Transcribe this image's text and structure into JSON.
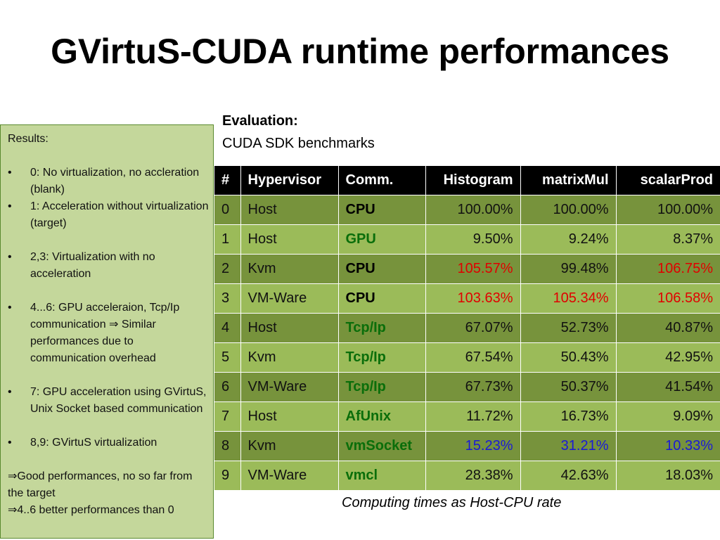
{
  "title": "GVirtuS-CUDA runtime performances",
  "results": {
    "heading": "Results:",
    "items": [
      "0: No virtualization, no accleration (blank)",
      "1: Acceleration without virtualization (target)",
      "2,3: Virtualization with no acceleration",
      "4...6: GPU acceleraion, Tcp/Ip communication ⇒ Similar performances due to communication overhead",
      "7: GPU acceleration using GVirtuS, Unix Socket based communication",
      "8,9: GVirtuS virtualization"
    ],
    "bullet": "•",
    "conclusions": [
      "⇒Good performances, no so far from the target",
      "⇒4..6 better performances than 0"
    ]
  },
  "evaluation": {
    "heading": "Evaluation:",
    "subtitle": "CUDA SDK benchmarks"
  },
  "table": {
    "headers": [
      "#",
      "Hypervisor",
      "Comm.",
      "Histogram",
      "matrixMul",
      "scalarProd"
    ],
    "rows": [
      {
        "id": "0",
        "hypervisor": "Host",
        "comm": "CPU",
        "comm_color": "#000000",
        "values": [
          {
            "v": "100.00%",
            "c": "#111111"
          },
          {
            "v": "100.00%",
            "c": "#111111"
          },
          {
            "v": "100.00%",
            "c": "#111111"
          }
        ]
      },
      {
        "id": "1",
        "hypervisor": "Host",
        "comm": "GPU",
        "comm_color": "#0a6e0a",
        "values": [
          {
            "v": "9.50%",
            "c": "#111111"
          },
          {
            "v": "9.24%",
            "c": "#111111"
          },
          {
            "v": "8.37%",
            "c": "#111111"
          }
        ]
      },
      {
        "id": "2",
        "hypervisor": "Kvm",
        "comm": "CPU",
        "comm_color": "#000000",
        "values": [
          {
            "v": "105.57%",
            "c": "#e00000"
          },
          {
            "v": "99.48%",
            "c": "#111111"
          },
          {
            "v": "106.75%",
            "c": "#e00000"
          }
        ]
      },
      {
        "id": "3",
        "hypervisor": "VM-Ware",
        "comm": "CPU",
        "comm_color": "#000000",
        "values": [
          {
            "v": "103.63%",
            "c": "#e00000"
          },
          {
            "v": "105.34%",
            "c": "#e00000"
          },
          {
            "v": "106.58%",
            "c": "#e00000"
          }
        ]
      },
      {
        "id": "4",
        "hypervisor": "Host",
        "comm": "Tcp/Ip",
        "comm_color": "#0a6e0a",
        "values": [
          {
            "v": "67.07%",
            "c": "#111111"
          },
          {
            "v": "52.73%",
            "c": "#111111"
          },
          {
            "v": "40.87%",
            "c": "#111111"
          }
        ]
      },
      {
        "id": "5",
        "hypervisor": "Kvm",
        "comm": "Tcp/Ip",
        "comm_color": "#0a6e0a",
        "values": [
          {
            "v": "67.54%",
            "c": "#111111"
          },
          {
            "v": "50.43%",
            "c": "#111111"
          },
          {
            "v": "42.95%",
            "c": "#111111"
          }
        ]
      },
      {
        "id": "6",
        "hypervisor": "VM-Ware",
        "comm": "Tcp/Ip",
        "comm_color": "#0a6e0a",
        "values": [
          {
            "v": "67.73%",
            "c": "#111111"
          },
          {
            "v": "50.37%",
            "c": "#111111"
          },
          {
            "v": "41.54%",
            "c": "#111111"
          }
        ]
      },
      {
        "id": "7",
        "hypervisor": "Host",
        "comm": "AfUnix",
        "comm_color": "#0a6e0a",
        "values": [
          {
            "v": "11.72%",
            "c": "#111111"
          },
          {
            "v": "16.73%",
            "c": "#111111"
          },
          {
            "v": "9.09%",
            "c": "#111111"
          }
        ]
      },
      {
        "id": "8",
        "hypervisor": "Kvm",
        "comm": "vmSocket",
        "comm_color": "#0a6e0a",
        "values": [
          {
            "v": "15.23%",
            "c": "#1a1ad6"
          },
          {
            "v": "31.21%",
            "c": "#1a1ad6"
          },
          {
            "v": "10.33%",
            "c": "#1a1ad6"
          }
        ]
      },
      {
        "id": "9",
        "hypervisor": "VM-Ware",
        "comm": "vmcl",
        "comm_color": "#0a6e0a",
        "values": [
          {
            "v": "28.38%",
            "c": "#111111"
          },
          {
            "v": "42.63%",
            "c": "#111111"
          },
          {
            "v": "18.03%",
            "c": "#111111"
          }
        ]
      }
    ],
    "caption": "Computing times as Host-CPU rate"
  },
  "colors": {
    "header_bg": "#000000",
    "row_dark": "#77933c",
    "row_light": "#9bbb59",
    "results_bg": "#c4d79b",
    "slower_red": "#e00000",
    "virtualized_blue": "#1a1ad6",
    "comm_green": "#0a6e0a"
  }
}
